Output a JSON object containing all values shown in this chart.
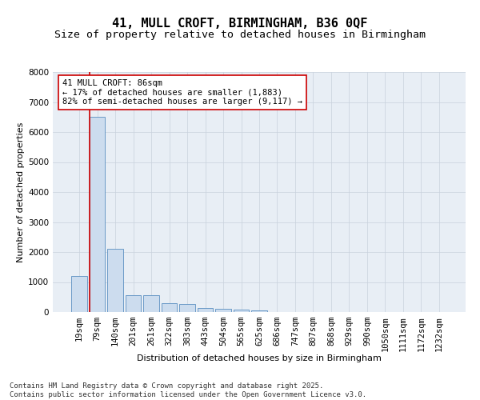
{
  "title_line1": "41, MULL CROFT, BIRMINGHAM, B36 0QF",
  "title_line2": "Size of property relative to detached houses in Birmingham",
  "xlabel": "Distribution of detached houses by size in Birmingham",
  "ylabel": "Number of detached properties",
  "categories": [
    "19sqm",
    "79sqm",
    "140sqm",
    "201sqm",
    "261sqm",
    "322sqm",
    "383sqm",
    "443sqm",
    "504sqm",
    "565sqm",
    "625sqm",
    "686sqm",
    "747sqm",
    "807sqm",
    "868sqm",
    "929sqm",
    "990sqm",
    "1050sqm",
    "1111sqm",
    "1172sqm",
    "1232sqm"
  ],
  "values": [
    1200,
    6500,
    2100,
    570,
    570,
    300,
    280,
    130,
    120,
    80,
    60,
    10,
    5,
    3,
    2,
    1,
    1,
    0,
    0,
    0,
    0
  ],
  "bar_color": "#ccdcee",
  "bar_edge_color": "#5a8fc0",
  "vline_color": "#cc0000",
  "annotation_text": "41 MULL CROFT: 86sqm\n← 17% of detached houses are smaller (1,883)\n82% of semi-detached houses are larger (9,117) →",
  "annotation_box_color": "#ffffff",
  "annotation_box_edge": "#cc0000",
  "ylim": [
    0,
    8000
  ],
  "yticks": [
    0,
    1000,
    2000,
    3000,
    4000,
    5000,
    6000,
    7000,
    8000
  ],
  "plot_bg_color": "#e8eef5",
  "background_color": "#ffffff",
  "grid_color": "#c8d0dc",
  "footnote": "Contains HM Land Registry data © Crown copyright and database right 2025.\nContains public sector information licensed under the Open Government Licence v3.0.",
  "title_fontsize": 11,
  "subtitle_fontsize": 9.5,
  "axis_label_fontsize": 8,
  "tick_fontsize": 7.5,
  "annotation_fontsize": 7.5,
  "footnote_fontsize": 6.5
}
